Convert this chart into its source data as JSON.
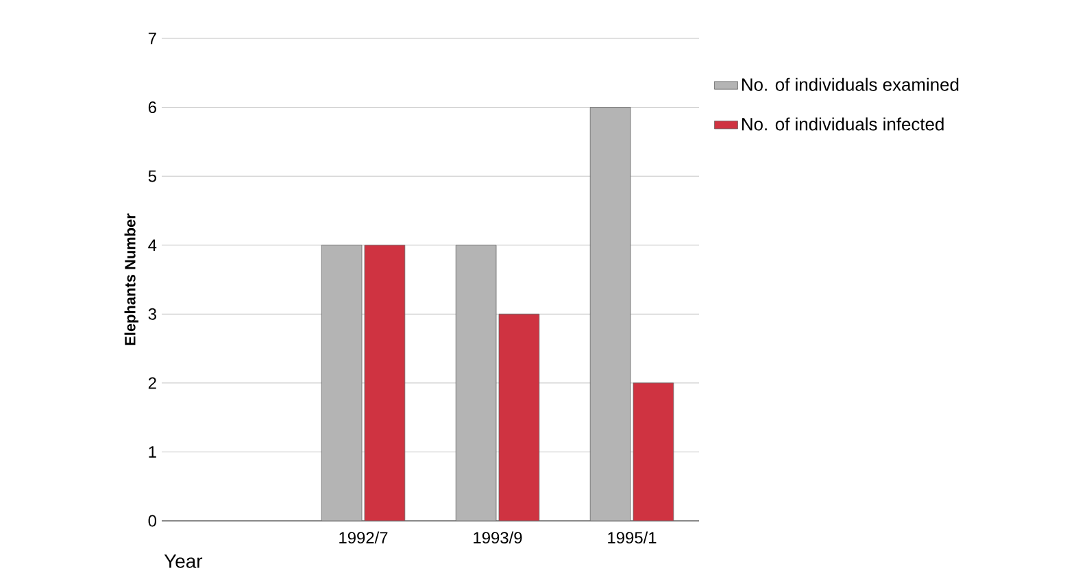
{
  "chart_data": {
    "type": "bar",
    "xlabel": "Year",
    "ylabel": "Elephants Number",
    "categories": [
      null,
      "1992/7",
      "1993/9",
      "1995/1"
    ],
    "series": [
      {
        "name": "No. of individuals examined",
        "color": "#b4b4b4",
        "values": [
          null,
          4,
          4,
          6
        ]
      },
      {
        "name": "No. of individuals infected",
        "color": "#cf3341",
        "values": [
          null,
          4,
          3,
          2
        ]
      }
    ],
    "ylim": [
      0,
      7
    ],
    "yticks": [
      0,
      1,
      2,
      3,
      4,
      5,
      6,
      7
    ],
    "grid": "y",
    "legend": "right"
  }
}
